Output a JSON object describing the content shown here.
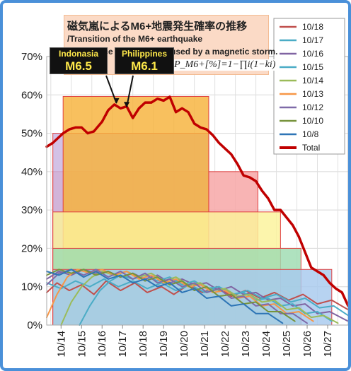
{
  "chart_data": {
    "type": "line",
    "title": "磁気嵐によるM6+地震発生確率の推移",
    "subtitle_lines": [
      "/Transition of the M6+ earthquake",
      "occurrence probability caused by a magnetic storm."
    ],
    "formula": "P_M6+[%]=1−∏i(1−ki)",
    "y_ticks": [
      "0%",
      "10%",
      "20%",
      "30%",
      "40%",
      "50%",
      "60%",
      "70%"
    ],
    "ylim": [
      0,
      70
    ],
    "x_ticks": [
      "10/14",
      "10/15",
      "10/16",
      "10/17",
      "10/18",
      "10/19",
      "10/20",
      "10/21",
      "10/22",
      "10/23",
      "10/24",
      "10/25",
      "10/26",
      "10/27"
    ],
    "xlim": [
      13.3,
      28.0
    ],
    "legend_position": "right",
    "annotations": [
      {
        "label": "Indonasia",
        "value": "M6.5",
        "x": 16.7,
        "y": 57.5
      },
      {
        "label": "Philippines",
        "value": "M6.1",
        "x": 17.2,
        "y": 56.5
      }
    ],
    "bands": [
      {
        "x_start": 13.6,
        "x_end": 23.6,
        "top": 40,
        "color": "#f6a3a3"
      },
      {
        "x_start": 13.6,
        "x_end": 21.2,
        "top": 50,
        "color": "#c9b3e0"
      },
      {
        "x_start": 14.1,
        "x_end": 21.2,
        "top": 59.6,
        "color": "#f6b23a"
      },
      {
        "x_start": 13.6,
        "x_end": 24.7,
        "top": 29.5,
        "color": "#fbf39a"
      },
      {
        "x_start": 13.6,
        "x_end": 25.7,
        "top": 20,
        "color": "#9edcb1"
      },
      {
        "x_start": 13.6,
        "x_end": 27.2,
        "top": 14.5,
        "color": "#a7c9ee"
      }
    ],
    "series": [
      {
        "name": "Total",
        "color": "#c00000",
        "width": 3.5,
        "points": [
          [
            13.3,
            46.5
          ],
          [
            13.6,
            47.5
          ],
          [
            13.9,
            49
          ],
          [
            14.1,
            50
          ],
          [
            14.4,
            51
          ],
          [
            14.7,
            51.5
          ],
          [
            15.0,
            51.5
          ],
          [
            15.3,
            50
          ],
          [
            15.6,
            50.5
          ],
          [
            16.0,
            53
          ],
          [
            16.3,
            56
          ],
          [
            16.6,
            57.5
          ],
          [
            16.9,
            56.5
          ],
          [
            17.2,
            57
          ],
          [
            17.5,
            54
          ],
          [
            17.8,
            56.5
          ],
          [
            18.1,
            58
          ],
          [
            18.4,
            58
          ],
          [
            18.7,
            59
          ],
          [
            19.0,
            58.5
          ],
          [
            19.3,
            59.5
          ],
          [
            19.6,
            55.5
          ],
          [
            19.9,
            56.5
          ],
          [
            20.2,
            55.5
          ],
          [
            20.5,
            52.5
          ],
          [
            20.8,
            51.5
          ],
          [
            21.1,
            51
          ],
          [
            21.4,
            49.5
          ],
          [
            21.7,
            47.5
          ],
          [
            22.0,
            46
          ],
          [
            22.3,
            44.5
          ],
          [
            22.6,
            42
          ],
          [
            22.9,
            39
          ],
          [
            23.2,
            38.5
          ],
          [
            23.5,
            37.5
          ],
          [
            23.8,
            35
          ],
          [
            24.1,
            33
          ],
          [
            24.4,
            30
          ],
          [
            24.7,
            30
          ],
          [
            25.0,
            28
          ],
          [
            25.3,
            26
          ],
          [
            25.6,
            23
          ],
          [
            25.9,
            19
          ],
          [
            26.2,
            15
          ],
          [
            26.5,
            14
          ],
          [
            26.8,
            13
          ],
          [
            27.1,
            11
          ],
          [
            27.4,
            9.5
          ],
          [
            27.7,
            8.5
          ],
          [
            28.0,
            5
          ]
        ]
      },
      {
        "name": "10/18",
        "color": "#c0504d",
        "width": 2,
        "points": [
          [
            13.3,
            8.5
          ],
          [
            13.8,
            11
          ],
          [
            14.4,
            9
          ],
          [
            15.0,
            10.5
          ],
          [
            15.6,
            8
          ],
          [
            16.2,
            11.5
          ],
          [
            16.9,
            9
          ],
          [
            17.6,
            11
          ],
          [
            18.2,
            8.5
          ],
          [
            18.9,
            10
          ],
          [
            19.5,
            8
          ],
          [
            20.2,
            10.5
          ],
          [
            20.9,
            8.5
          ],
          [
            21.6,
            10
          ],
          [
            22.3,
            7.5
          ],
          [
            23.0,
            9
          ],
          [
            23.7,
            7
          ],
          [
            24.4,
            8.5
          ],
          [
            25.1,
            6.5
          ],
          [
            25.8,
            8
          ],
          [
            26.5,
            5.5
          ],
          [
            27.2,
            6.5
          ],
          [
            28.0,
            4
          ]
        ]
      },
      {
        "name": "10/17",
        "color": "#4bacc6",
        "width": 2,
        "points": [
          [
            13.3,
            11
          ],
          [
            14.0,
            9.5
          ],
          [
            14.7,
            11.5
          ],
          [
            15.4,
            10
          ],
          [
            16.1,
            12
          ],
          [
            16.8,
            10
          ],
          [
            17.5,
            11.5
          ],
          [
            18.2,
            9.5
          ],
          [
            18.9,
            11
          ],
          [
            19.6,
            9
          ],
          [
            20.3,
            10.5
          ],
          [
            21.0,
            8.5
          ],
          [
            21.7,
            10
          ],
          [
            22.4,
            8
          ],
          [
            23.1,
            9
          ],
          [
            23.8,
            7
          ],
          [
            24.5,
            8
          ],
          [
            25.2,
            6
          ],
          [
            25.9,
            7
          ],
          [
            26.6,
            4.5
          ],
          [
            27.3,
            5
          ],
          [
            28.0,
            2.5
          ]
        ]
      },
      {
        "name": "10/16",
        "color": "#8064a2",
        "width": 2,
        "points": [
          [
            13.3,
            12
          ],
          [
            13.9,
            14
          ],
          [
            14.5,
            13
          ],
          [
            15.1,
            14.5
          ],
          [
            15.7,
            13.5
          ],
          [
            16.3,
            14
          ],
          [
            16.9,
            12.5
          ],
          [
            17.5,
            13.5
          ],
          [
            18.1,
            12
          ],
          [
            18.7,
            13
          ],
          [
            19.3,
            11
          ],
          [
            19.9,
            12
          ],
          [
            20.5,
            10.5
          ],
          [
            21.1,
            11
          ],
          [
            21.7,
            9
          ],
          [
            22.3,
            10
          ],
          [
            22.9,
            8
          ],
          [
            23.5,
            8.5
          ],
          [
            24.1,
            6.5
          ],
          [
            24.7,
            7
          ],
          [
            25.3,
            5
          ],
          [
            25.9,
            5.5
          ],
          [
            26.5,
            3
          ],
          [
            27.1,
            3.5
          ],
          [
            28.0,
            1
          ]
        ]
      },
      {
        "name": "10/15",
        "color": "#4bacc6",
        "width": 2,
        "points": [
          [
            14.9,
            0
          ],
          [
            15.4,
            5
          ],
          [
            15.9,
            9
          ],
          [
            16.4,
            11.5
          ],
          [
            16.9,
            13
          ],
          [
            17.5,
            12
          ],
          [
            18.1,
            13
          ],
          [
            18.7,
            11.5
          ],
          [
            19.3,
            12.5
          ],
          [
            19.9,
            10.5
          ],
          [
            20.5,
            11.5
          ],
          [
            21.1,
            9.5
          ],
          [
            21.7,
            10
          ],
          [
            22.3,
            8
          ],
          [
            22.9,
            8.5
          ],
          [
            23.5,
            6.5
          ],
          [
            24.1,
            7
          ],
          [
            24.7,
            5
          ],
          [
            25.3,
            5.5
          ],
          [
            25.9,
            3
          ],
          [
            26.5,
            3.5
          ],
          [
            27.2,
            1
          ]
        ]
      },
      {
        "name": "10/14",
        "color": "#9bbb59",
        "width": 2,
        "points": [
          [
            14.0,
            0
          ],
          [
            14.5,
            6
          ],
          [
            15.0,
            10
          ],
          [
            15.5,
            12.5
          ],
          [
            16.0,
            14
          ],
          [
            16.6,
            13
          ],
          [
            17.2,
            14
          ],
          [
            17.8,
            12.5
          ],
          [
            18.4,
            13.5
          ],
          [
            19.0,
            11.5
          ],
          [
            19.6,
            12.5
          ],
          [
            20.2,
            10.5
          ],
          [
            20.8,
            11
          ],
          [
            21.4,
            9
          ],
          [
            22.0,
            9.5
          ],
          [
            22.6,
            7.5
          ],
          [
            23.2,
            8
          ],
          [
            23.8,
            6
          ],
          [
            24.4,
            6.5
          ],
          [
            25.0,
            4
          ],
          [
            25.6,
            4.5
          ],
          [
            26.2,
            2
          ],
          [
            26.8,
            2.5
          ],
          [
            27.5,
            0.5
          ]
        ]
      },
      {
        "name": "10/13",
        "color": "#f79646",
        "width": 2,
        "points": [
          [
            13.3,
            2
          ],
          [
            13.8,
            8
          ],
          [
            14.3,
            12.5
          ],
          [
            14.8,
            14.5
          ],
          [
            15.4,
            13.5
          ],
          [
            16.0,
            14.5
          ],
          [
            16.6,
            13
          ],
          [
            17.2,
            14
          ],
          [
            17.8,
            12
          ],
          [
            18.4,
            13
          ],
          [
            19.0,
            11
          ],
          [
            19.6,
            12
          ],
          [
            20.2,
            10
          ],
          [
            20.8,
            10.5
          ],
          [
            21.4,
            8.5
          ],
          [
            22.0,
            9
          ],
          [
            22.6,
            7
          ],
          [
            23.2,
            7.5
          ],
          [
            23.8,
            5
          ],
          [
            24.4,
            5.5
          ],
          [
            25.0,
            3
          ],
          [
            25.6,
            3.5
          ],
          [
            26.3,
            1
          ]
        ]
      },
      {
        "name": "10/12",
        "color": "#7f6aa8",
        "width": 2,
        "points": [
          [
            13.3,
            10.5
          ],
          [
            13.9,
            13.5
          ],
          [
            14.5,
            14.5
          ],
          [
            15.1,
            13
          ],
          [
            15.7,
            14.5
          ],
          [
            16.3,
            12.5
          ],
          [
            16.9,
            14
          ],
          [
            17.5,
            12
          ],
          [
            18.1,
            13.5
          ],
          [
            18.7,
            11
          ],
          [
            19.3,
            12
          ],
          [
            19.9,
            10
          ],
          [
            20.5,
            11
          ],
          [
            21.1,
            8.5
          ],
          [
            21.7,
            9.5
          ],
          [
            22.3,
            7
          ],
          [
            22.9,
            7.5
          ],
          [
            23.5,
            5
          ],
          [
            24.1,
            5.5
          ],
          [
            24.7,
            3
          ],
          [
            25.3,
            3
          ],
          [
            26.0,
            0.5
          ]
        ]
      },
      {
        "name": "10/10",
        "color": "#77933c",
        "width": 2,
        "points": [
          [
            13.3,
            13
          ],
          [
            13.9,
            14.5
          ],
          [
            14.5,
            13.5
          ],
          [
            15.1,
            14.5
          ],
          [
            15.7,
            13
          ],
          [
            16.3,
            14
          ],
          [
            16.9,
            12.5
          ],
          [
            17.5,
            13.5
          ],
          [
            18.1,
            11.5
          ],
          [
            18.7,
            12.5
          ],
          [
            19.3,
            10.5
          ],
          [
            19.9,
            11.5
          ],
          [
            20.5,
            9
          ],
          [
            21.1,
            10
          ],
          [
            21.7,
            7.5
          ],
          [
            22.3,
            8
          ],
          [
            22.9,
            5.5
          ],
          [
            23.5,
            6
          ],
          [
            24.1,
            3.5
          ],
          [
            24.7,
            3.5
          ],
          [
            25.4,
            1
          ]
        ]
      },
      {
        "name": "10/8",
        "color": "#2e75b6",
        "width": 2,
        "points": [
          [
            13.3,
            14
          ],
          [
            13.9,
            13
          ],
          [
            14.5,
            14.5
          ],
          [
            15.1,
            12.5
          ],
          [
            15.7,
            14
          ],
          [
            16.3,
            12
          ],
          [
            16.9,
            13
          ],
          [
            17.5,
            11
          ],
          [
            18.1,
            12
          ],
          [
            18.7,
            10
          ],
          [
            19.3,
            11
          ],
          [
            19.9,
            8.5
          ],
          [
            20.5,
            9.5
          ],
          [
            21.1,
            7
          ],
          [
            21.7,
            7.5
          ],
          [
            22.3,
            5
          ],
          [
            22.9,
            5.5
          ],
          [
            23.5,
            3
          ],
          [
            24.1,
            3
          ],
          [
            24.8,
            0.5
          ]
        ]
      }
    ],
    "legend": [
      "10/18",
      "10/17",
      "10/16",
      "10/15",
      "10/14",
      "10/13",
      "10/12",
      "10/10",
      "10/8",
      "Total"
    ]
  }
}
